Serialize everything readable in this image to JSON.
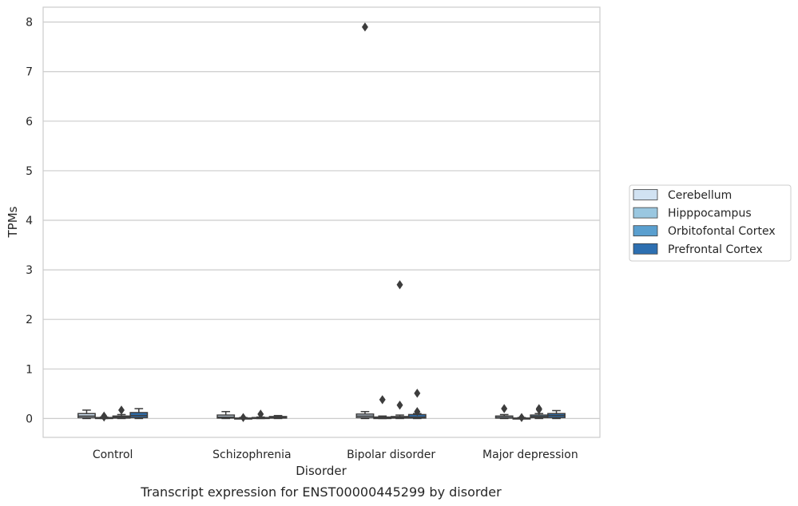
{
  "chart_data": {
    "type": "box",
    "caption": "Transcript expression for ENST00000445299 by disorder",
    "xlabel": "Disorder",
    "ylabel": "TPMs",
    "ylim": [
      -0.38,
      8.3
    ],
    "yticks": [
      0,
      1,
      2,
      3,
      4,
      5,
      6,
      7,
      8
    ],
    "grid": "horizontal",
    "legend_position": "right",
    "categories": [
      "Control",
      "Schizophrenia",
      "Bipolar disorder",
      "Major depression"
    ],
    "series": [
      {
        "name": "Cerebellum",
        "color": "#d1e2f2",
        "boxes": [
          {
            "min": 0.0,
            "q1": 0.02,
            "median": 0.05,
            "q3": 0.1,
            "max": 0.17,
            "outliers": []
          },
          {
            "min": 0.0,
            "q1": 0.01,
            "median": 0.03,
            "q3": 0.07,
            "max": 0.14,
            "outliers": []
          },
          {
            "min": 0.0,
            "q1": 0.02,
            "median": 0.05,
            "q3": 0.09,
            "max": 0.14,
            "outliers": [
              7.9
            ]
          },
          {
            "min": 0.0,
            "q1": 0.01,
            "median": 0.02,
            "q3": 0.05,
            "max": 0.08,
            "outliers": [
              0.2
            ]
          }
        ]
      },
      {
        "name": "Hipppocampus",
        "color": "#9ac7e0",
        "boxes": [
          {
            "min": 0.0,
            "q1": 0.0,
            "median": 0.01,
            "q3": 0.02,
            "max": 0.03,
            "outliers": [
              0.05,
              0.03
            ]
          },
          {
            "min": 0.0,
            "q1": 0.0,
            "median": 0.0,
            "q3": 0.01,
            "max": 0.02,
            "outliers": [
              0.02
            ]
          },
          {
            "min": 0.0,
            "q1": 0.0,
            "median": 0.01,
            "q3": 0.03,
            "max": 0.05,
            "outliers": [
              0.38
            ]
          },
          {
            "min": 0.0,
            "q1": 0.0,
            "median": 0.0,
            "q3": 0.01,
            "max": 0.02,
            "outliers": [
              0.02
            ]
          }
        ]
      },
      {
        "name": "Orbitofontal Cortex",
        "color": "#5a9fcf",
        "boxes": [
          {
            "min": 0.0,
            "q1": 0.01,
            "median": 0.03,
            "q3": 0.05,
            "max": 0.08,
            "outliers": [
              0.17
            ]
          },
          {
            "min": 0.0,
            "q1": 0.0,
            "median": 0.01,
            "q3": 0.02,
            "max": 0.03,
            "outliers": [
              0.09
            ]
          },
          {
            "min": 0.0,
            "q1": 0.01,
            "median": 0.02,
            "q3": 0.04,
            "max": 0.07,
            "outliers": [
              2.7,
              0.27
            ]
          },
          {
            "min": 0.0,
            "q1": 0.02,
            "median": 0.04,
            "q3": 0.07,
            "max": 0.1,
            "outliers": [
              0.2,
              0.18
            ]
          }
        ]
      },
      {
        "name": "Prefrontal Cortex",
        "color": "#2d6fb1",
        "boxes": [
          {
            "min": 0.0,
            "q1": 0.02,
            "median": 0.06,
            "q3": 0.12,
            "max": 0.2,
            "outliers": []
          },
          {
            "min": 0.0,
            "q1": 0.01,
            "median": 0.02,
            "q3": 0.04,
            "max": 0.06,
            "outliers": []
          },
          {
            "min": 0.0,
            "q1": 0.01,
            "median": 0.03,
            "q3": 0.08,
            "max": 0.1,
            "outliers": [
              0.51,
              0.14
            ]
          },
          {
            "min": 0.0,
            "q1": 0.02,
            "median": 0.06,
            "q3": 0.1,
            "max": 0.16,
            "outliers": []
          }
        ]
      }
    ]
  }
}
